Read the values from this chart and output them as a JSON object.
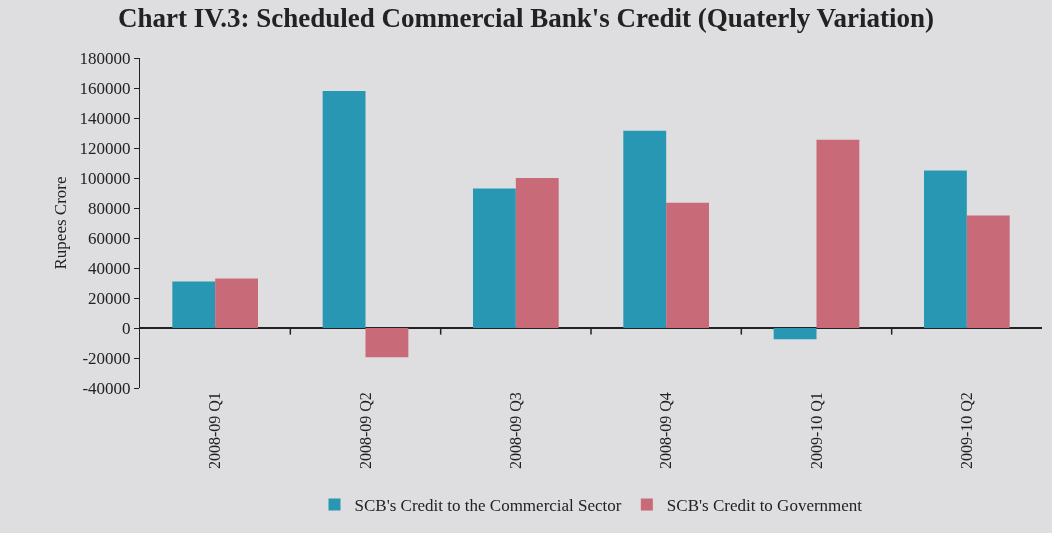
{
  "chart_data": {
    "type": "bar",
    "title": "Chart IV.3: Scheduled Commercial Bank's Credit (Quaterly Variation)",
    "ylabel": "Rupees Crore",
    "categories": [
      "2008-09 Q1",
      "2008-09 Q2",
      "2008-09 Q3",
      "2008-09 Q4",
      "2009-10 Q1",
      "2009-10 Q2"
    ],
    "series": [
      {
        "name": "SCB's Credit to the Commercial Sector",
        "color": "#2897b4",
        "values": [
          31000,
          158000,
          93000,
          131500,
          -7500,
          105000
        ]
      },
      {
        "name": "SCB's Credit to Government",
        "color": "#c96a79",
        "values": [
          33000,
          -19500,
          100000,
          83500,
          125500,
          75000
        ]
      }
    ],
    "ylim": [
      -40000,
      180000
    ],
    "yticks": [
      -40000,
      -20000,
      0,
      20000,
      40000,
      60000,
      80000,
      100000,
      120000,
      140000,
      160000,
      180000
    ],
    "legend": "bottom"
  }
}
